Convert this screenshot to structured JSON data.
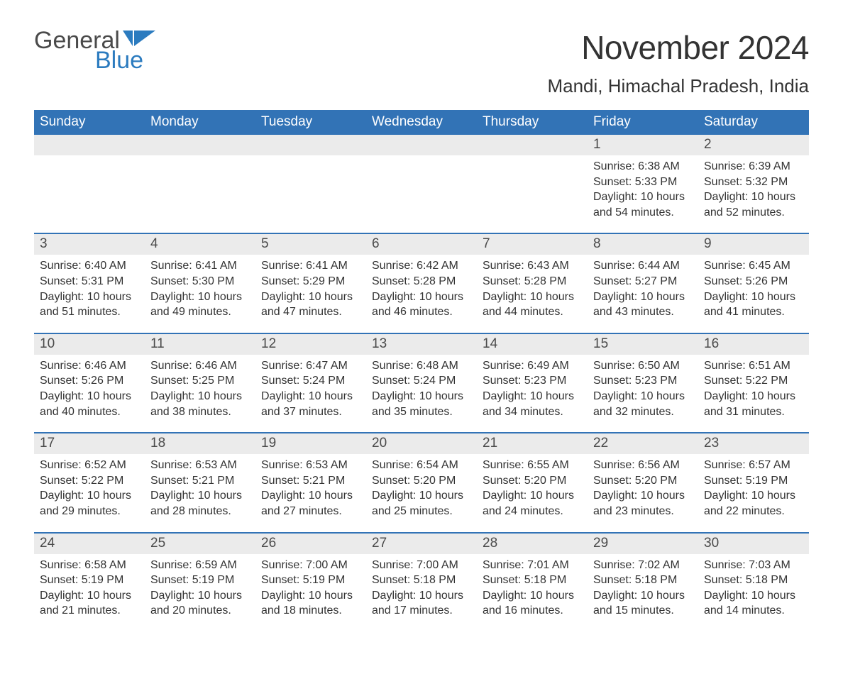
{
  "logo": {
    "word1": "General",
    "word2": "Blue",
    "flag_color": "#2b7bbf"
  },
  "header": {
    "title": "November 2024",
    "location": "Mandi, Himachal Pradesh, India"
  },
  "colors": {
    "header_bg": "#3273b6",
    "header_text": "#ffffff",
    "daybar_bg": "#ebebeb",
    "text": "#333333"
  },
  "weekdays": [
    "Sunday",
    "Monday",
    "Tuesday",
    "Wednesday",
    "Thursday",
    "Friday",
    "Saturday"
  ],
  "weeks": [
    [
      null,
      null,
      null,
      null,
      null,
      {
        "n": "1",
        "sunrise": "Sunrise: 6:38 AM",
        "sunset": "Sunset: 5:33 PM",
        "daylight": "Daylight: 10 hours and 54 minutes."
      },
      {
        "n": "2",
        "sunrise": "Sunrise: 6:39 AM",
        "sunset": "Sunset: 5:32 PM",
        "daylight": "Daylight: 10 hours and 52 minutes."
      }
    ],
    [
      {
        "n": "3",
        "sunrise": "Sunrise: 6:40 AM",
        "sunset": "Sunset: 5:31 PM",
        "daylight": "Daylight: 10 hours and 51 minutes."
      },
      {
        "n": "4",
        "sunrise": "Sunrise: 6:41 AM",
        "sunset": "Sunset: 5:30 PM",
        "daylight": "Daylight: 10 hours and 49 minutes."
      },
      {
        "n": "5",
        "sunrise": "Sunrise: 6:41 AM",
        "sunset": "Sunset: 5:29 PM",
        "daylight": "Daylight: 10 hours and 47 minutes."
      },
      {
        "n": "6",
        "sunrise": "Sunrise: 6:42 AM",
        "sunset": "Sunset: 5:28 PM",
        "daylight": "Daylight: 10 hours and 46 minutes."
      },
      {
        "n": "7",
        "sunrise": "Sunrise: 6:43 AM",
        "sunset": "Sunset: 5:28 PM",
        "daylight": "Daylight: 10 hours and 44 minutes."
      },
      {
        "n": "8",
        "sunrise": "Sunrise: 6:44 AM",
        "sunset": "Sunset: 5:27 PM",
        "daylight": "Daylight: 10 hours and 43 minutes."
      },
      {
        "n": "9",
        "sunrise": "Sunrise: 6:45 AM",
        "sunset": "Sunset: 5:26 PM",
        "daylight": "Daylight: 10 hours and 41 minutes."
      }
    ],
    [
      {
        "n": "10",
        "sunrise": "Sunrise: 6:46 AM",
        "sunset": "Sunset: 5:26 PM",
        "daylight": "Daylight: 10 hours and 40 minutes."
      },
      {
        "n": "11",
        "sunrise": "Sunrise: 6:46 AM",
        "sunset": "Sunset: 5:25 PM",
        "daylight": "Daylight: 10 hours and 38 minutes."
      },
      {
        "n": "12",
        "sunrise": "Sunrise: 6:47 AM",
        "sunset": "Sunset: 5:24 PM",
        "daylight": "Daylight: 10 hours and 37 minutes."
      },
      {
        "n": "13",
        "sunrise": "Sunrise: 6:48 AM",
        "sunset": "Sunset: 5:24 PM",
        "daylight": "Daylight: 10 hours and 35 minutes."
      },
      {
        "n": "14",
        "sunrise": "Sunrise: 6:49 AM",
        "sunset": "Sunset: 5:23 PM",
        "daylight": "Daylight: 10 hours and 34 minutes."
      },
      {
        "n": "15",
        "sunrise": "Sunrise: 6:50 AM",
        "sunset": "Sunset: 5:23 PM",
        "daylight": "Daylight: 10 hours and 32 minutes."
      },
      {
        "n": "16",
        "sunrise": "Sunrise: 6:51 AM",
        "sunset": "Sunset: 5:22 PM",
        "daylight": "Daylight: 10 hours and 31 minutes."
      }
    ],
    [
      {
        "n": "17",
        "sunrise": "Sunrise: 6:52 AM",
        "sunset": "Sunset: 5:22 PM",
        "daylight": "Daylight: 10 hours and 29 minutes."
      },
      {
        "n": "18",
        "sunrise": "Sunrise: 6:53 AM",
        "sunset": "Sunset: 5:21 PM",
        "daylight": "Daylight: 10 hours and 28 minutes."
      },
      {
        "n": "19",
        "sunrise": "Sunrise: 6:53 AM",
        "sunset": "Sunset: 5:21 PM",
        "daylight": "Daylight: 10 hours and 27 minutes."
      },
      {
        "n": "20",
        "sunrise": "Sunrise: 6:54 AM",
        "sunset": "Sunset: 5:20 PM",
        "daylight": "Daylight: 10 hours and 25 minutes."
      },
      {
        "n": "21",
        "sunrise": "Sunrise: 6:55 AM",
        "sunset": "Sunset: 5:20 PM",
        "daylight": "Daylight: 10 hours and 24 minutes."
      },
      {
        "n": "22",
        "sunrise": "Sunrise: 6:56 AM",
        "sunset": "Sunset: 5:20 PM",
        "daylight": "Daylight: 10 hours and 23 minutes."
      },
      {
        "n": "23",
        "sunrise": "Sunrise: 6:57 AM",
        "sunset": "Sunset: 5:19 PM",
        "daylight": "Daylight: 10 hours and 22 minutes."
      }
    ],
    [
      {
        "n": "24",
        "sunrise": "Sunrise: 6:58 AM",
        "sunset": "Sunset: 5:19 PM",
        "daylight": "Daylight: 10 hours and 21 minutes."
      },
      {
        "n": "25",
        "sunrise": "Sunrise: 6:59 AM",
        "sunset": "Sunset: 5:19 PM",
        "daylight": "Daylight: 10 hours and 20 minutes."
      },
      {
        "n": "26",
        "sunrise": "Sunrise: 7:00 AM",
        "sunset": "Sunset: 5:19 PM",
        "daylight": "Daylight: 10 hours and 18 minutes."
      },
      {
        "n": "27",
        "sunrise": "Sunrise: 7:00 AM",
        "sunset": "Sunset: 5:18 PM",
        "daylight": "Daylight: 10 hours and 17 minutes."
      },
      {
        "n": "28",
        "sunrise": "Sunrise: 7:01 AM",
        "sunset": "Sunset: 5:18 PM",
        "daylight": "Daylight: 10 hours and 16 minutes."
      },
      {
        "n": "29",
        "sunrise": "Sunrise: 7:02 AM",
        "sunset": "Sunset: 5:18 PM",
        "daylight": "Daylight: 10 hours and 15 minutes."
      },
      {
        "n": "30",
        "sunrise": "Sunrise: 7:03 AM",
        "sunset": "Sunset: 5:18 PM",
        "daylight": "Daylight: 10 hours and 14 minutes."
      }
    ]
  ]
}
